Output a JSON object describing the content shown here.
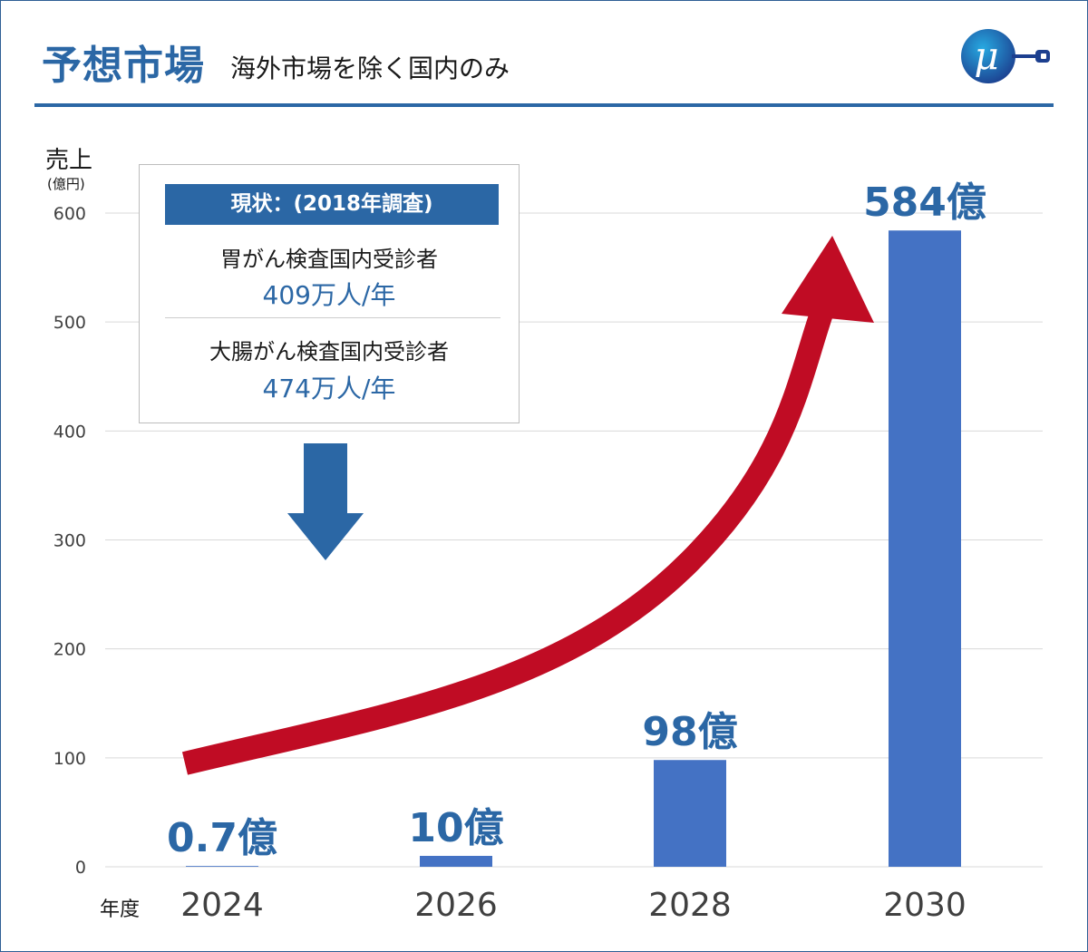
{
  "header": {
    "title": "予想市場",
    "subtitle": "海外市場を除く国内のみ"
  },
  "colors": {
    "accent": "#2b67a5",
    "bar": "#4472c4",
    "arrow_red": "#c00c24",
    "arrow_blue": "#2b67a5",
    "grid": "#d9d9d9"
  },
  "icons": {
    "logo": "mu-logo-icon",
    "growth_arrow": "curved-arrow-up-icon",
    "down_arrow": "arrow-down-icon"
  },
  "info_box": {
    "heading": "現状：(2018年調査)",
    "items": [
      {
        "label": "胃がん検査国内受診者",
        "value": "409万人/年"
      },
      {
        "label": "大腸がん検査国内受診者",
        "value": "474万人/年"
      }
    ]
  },
  "chart_data": {
    "type": "bar",
    "ylabel": "売上",
    "yunit": "(億円)",
    "xlabel": "年度",
    "categories": [
      "2024",
      "2026",
      "2028",
      "2030"
    ],
    "values": [
      0.7,
      10,
      98,
      584
    ],
    "data_labels": [
      "0.7億",
      "10億",
      "98億",
      "584億"
    ],
    "ylim": [
      0,
      600
    ],
    "yticks": [
      0,
      100,
      200,
      300,
      400,
      500,
      600
    ],
    "grid": true
  }
}
